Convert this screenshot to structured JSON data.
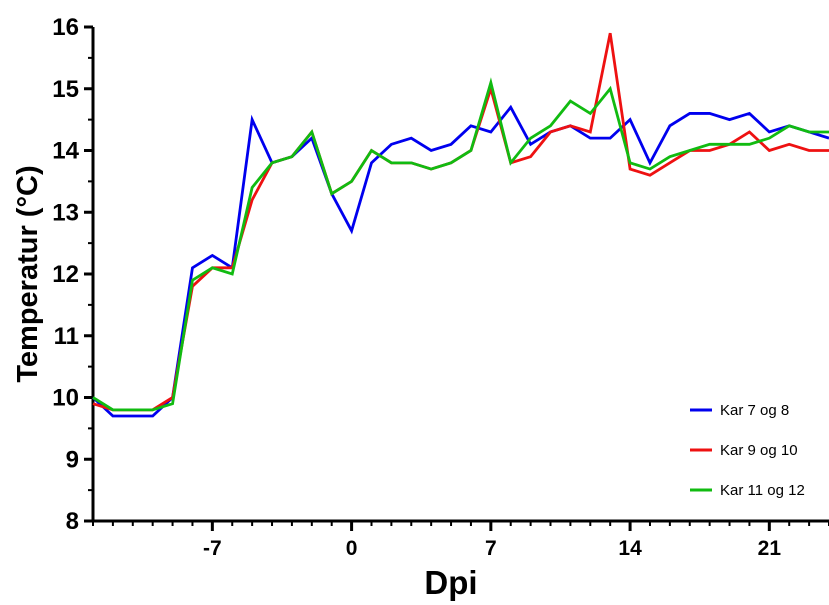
{
  "chart_data": {
    "type": "line",
    "xlabel": "Dpi",
    "ylabel": "Temperatur (°C)",
    "xlim": [
      -13,
      24
    ],
    "ylim": [
      8,
      16
    ],
    "x_ticks": [
      -7,
      0,
      7,
      14,
      21
    ],
    "y_ticks": [
      8,
      9,
      10,
      11,
      12,
      13,
      14,
      15,
      16
    ],
    "grid": false,
    "legend_position": "bottom-right",
    "x": [
      -13,
      -12,
      -11,
      -10,
      -9,
      -8,
      -7,
      -6,
      -5,
      -4,
      -3,
      -2,
      -1,
      0,
      1,
      2,
      3,
      4,
      5,
      6,
      7,
      8,
      9,
      10,
      11,
      12,
      13,
      14,
      15,
      16,
      17,
      18,
      19,
      20,
      21,
      22,
      23,
      24
    ],
    "series": [
      {
        "name": "Kar 7 og 8",
        "color": "#0000ee",
        "values": [
          10.0,
          9.7,
          9.7,
          9.7,
          10.0,
          12.1,
          12.3,
          12.1,
          14.5,
          13.8,
          13.9,
          14.2,
          13.3,
          12.7,
          13.8,
          14.1,
          14.2,
          14.0,
          14.1,
          14.4,
          14.3,
          14.7,
          14.1,
          14.3,
          14.4,
          14.2,
          14.2,
          14.5,
          13.8,
          14.4,
          14.6,
          14.6,
          14.5,
          14.6,
          14.3,
          14.4,
          14.3,
          14.2
        ]
      },
      {
        "name": "Kar 9 og 10",
        "color": "#ee1111",
        "values": [
          9.9,
          9.8,
          9.8,
          9.8,
          10.0,
          11.8,
          12.1,
          12.1,
          13.2,
          13.8,
          13.9,
          14.3,
          13.3,
          13.5,
          14.0,
          13.8,
          13.8,
          13.7,
          13.8,
          14.0,
          15.0,
          13.8,
          13.9,
          14.3,
          14.4,
          14.3,
          15.9,
          13.7,
          13.6,
          13.8,
          14.0,
          14.0,
          14.1,
          14.3,
          14.0,
          14.1,
          14.0,
          14.0
        ]
      },
      {
        "name": "Kar 11 og 12",
        "color": "#11bb11",
        "values": [
          10.0,
          9.8,
          9.8,
          9.8,
          9.9,
          11.9,
          12.1,
          12.0,
          13.4,
          13.8,
          13.9,
          14.3,
          13.3,
          13.5,
          14.0,
          13.8,
          13.8,
          13.7,
          13.8,
          14.0,
          15.1,
          13.8,
          14.2,
          14.4,
          14.8,
          14.6,
          15.0,
          13.8,
          13.7,
          13.9,
          14.0,
          14.1,
          14.1,
          14.1,
          14.2,
          14.4,
          14.3,
          14.3
        ]
      }
    ]
  }
}
